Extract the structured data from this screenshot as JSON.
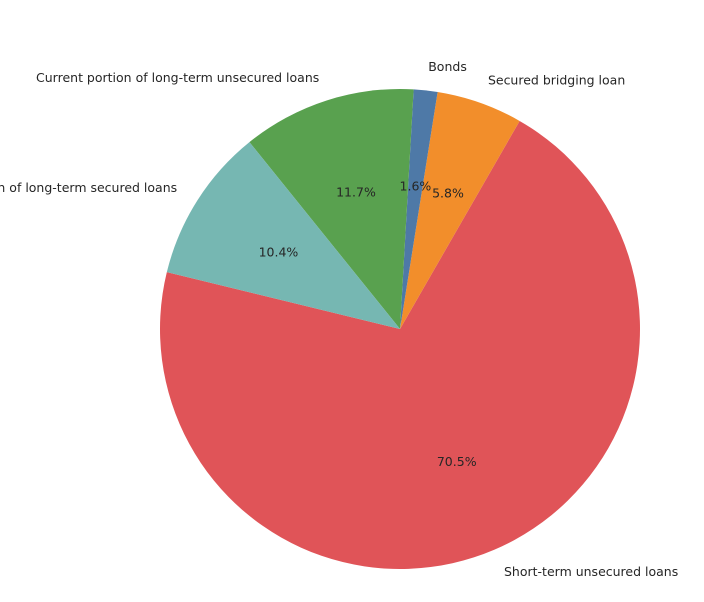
{
  "chart_data": {
    "type": "pie",
    "title": "",
    "slices": [
      {
        "label": "Short-term unsecured loans",
        "value": 70.5,
        "pct_label": "70.5%",
        "color": "#e05458"
      },
      {
        "label": "Secured bridging loan",
        "value": 5.8,
        "pct_label": "5.8%",
        "color": "#f28e2b"
      },
      {
        "label": "Bonds",
        "value": 1.6,
        "pct_label": "1.6%",
        "color": "#4e79a7"
      },
      {
        "label": "Current portion of long-term unsecured loans",
        "value": 11.7,
        "pct_label": "11.7%",
        "color": "#59a14f"
      },
      {
        "label": "Current portion of long-term secured loans",
        "value": 10.4,
        "pct_label": "10.4%",
        "color": "#76b7b2"
      }
    ],
    "legend": "none"
  }
}
